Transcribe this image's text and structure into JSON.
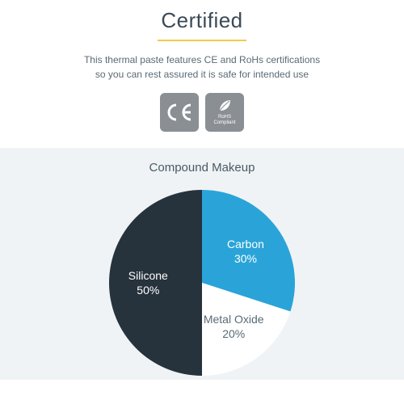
{
  "header": {
    "title": "Certified",
    "underline_color": "#f2c94c",
    "subtitle_line1": "This thermal paste features CE and RoHs certifications",
    "subtitle_line2": "so you can rest assured it is safe for intended use"
  },
  "badges": {
    "background_color": "#8a8f94",
    "ce_label": "C€E",
    "ce_text": "CE",
    "rohs_line1": "RoHS",
    "rohs_line2": "Compliant"
  },
  "chart": {
    "title": "Compound Makeup",
    "type": "pie",
    "background_color": "#f0f3f5",
    "radius": 115,
    "slices": [
      {
        "label": "Carbon",
        "percent": "30%",
        "value": 30,
        "color": "#2aa4d8",
        "text_color": "#ffffff"
      },
      {
        "label": "Metal Oxide",
        "percent": "20%",
        "value": 20,
        "color": "#ffffff",
        "text_color": "#5a6a75"
      },
      {
        "label": "Silicone",
        "percent": "50%",
        "value": 50,
        "color": "#26323c",
        "text_color": "#ffffff"
      }
    ]
  }
}
